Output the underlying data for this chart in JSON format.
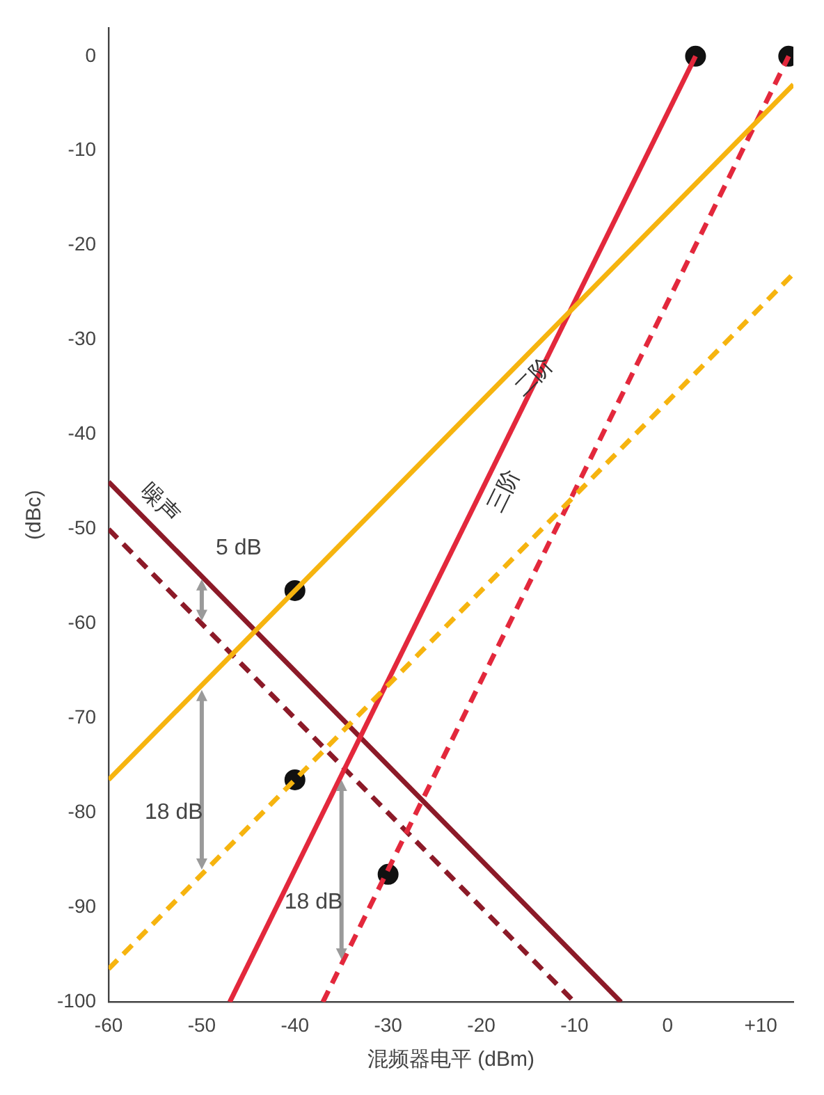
{
  "chart_data": {
    "type": "line",
    "xlabel": "混频器电平 (dBm)",
    "ylabel": "(dBc)",
    "xlim": [
      -60,
      13.5
    ],
    "ylim": [
      -100,
      3
    ],
    "xticks": [
      -60,
      -50,
      -40,
      -30,
      -20,
      -10,
      0,
      {
        "value": 10,
        "label": "+10"
      }
    ],
    "yticks": [
      0,
      -10,
      -20,
      -30,
      -40,
      -50,
      -60,
      -70,
      -80,
      -90,
      -100
    ],
    "grid": false,
    "legend": false,
    "series": [
      {
        "name": "二阶",
        "color": "#f6b40f",
        "x": [
          -60,
          13.5
        ],
        "values": [
          -76.5,
          -3
        ]
      },
      {
        "color": "#f6b40f",
        "line_style": "dashed",
        "x": [
          -60,
          13.5
        ],
        "values": [
          -96.5,
          -23
        ]
      },
      {
        "name": "三阶",
        "color": "#e3283c",
        "x": [
          -47,
          3
        ],
        "values": [
          -100,
          0
        ]
      },
      {
        "color": "#e3283c",
        "line_style": "dashed",
        "x": [
          -37,
          13
        ],
        "values": [
          -100,
          0
        ]
      },
      {
        "name": "噪声",
        "color": "#8c1a28",
        "x": [
          -60,
          -5
        ],
        "values": [
          -45,
          -100
        ]
      },
      {
        "color": "#8c1a28",
        "line_style": "dashed",
        "x": [
          -60,
          -10
        ],
        "values": [
          -50,
          -100
        ]
      },
      {
        "type": "scatter",
        "color": "#111111",
        "marker": "circle",
        "x": [
          3,
          13,
          -40,
          -40,
          -30
        ],
        "values": [
          0,
          0,
          -56.5,
          -76.5,
          -86.5
        ]
      }
    ],
    "annotations": [
      "5 dB",
      "18 dB",
      "18 dB"
    ]
  }
}
